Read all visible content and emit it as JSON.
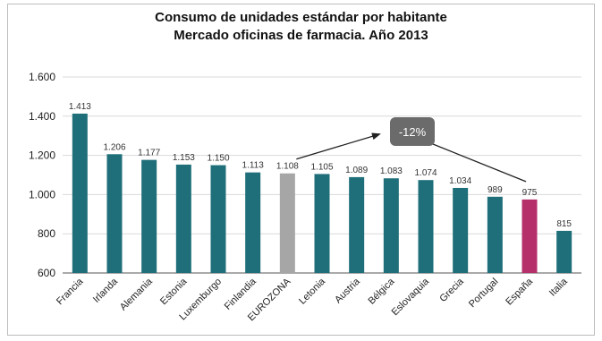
{
  "chart_data": {
    "type": "bar",
    "title": [
      "Consumo de unidades estándar por habitante",
      "Mercado oficinas de farmacia. Año 2013"
    ],
    "categories": [
      "Francia",
      "Irlanda",
      "Alemania",
      "Estonia",
      "Luxemburgo",
      "Finlandia",
      "EUROZONA",
      "Letonia",
      "Austria",
      "Bélgica",
      "Eslovaquia",
      "Grecia",
      "Portugal",
      "España",
      "Italia"
    ],
    "values": [
      1413,
      1206,
      1177,
      1153,
      1150,
      1113,
      1108,
      1105,
      1089,
      1083,
      1074,
      1034,
      989,
      975,
      815
    ],
    "value_labels": [
      "1.413",
      "1.206",
      "1.177",
      "1.153",
      "1.150",
      "1.113",
      "1.108",
      "1.105",
      "1.089",
      "1.083",
      "1.074",
      "1.034",
      "989",
      "975",
      "815"
    ],
    "ylim": [
      600,
      1600
    ],
    "yticks": [
      600,
      800,
      1000,
      1200,
      1400,
      1600
    ],
    "ytick_labels": [
      "600",
      "800",
      "1.000",
      "1.200",
      "1.400",
      "1.600"
    ],
    "grid": true,
    "colors": {
      "default": "#1f6f7a",
      "EUROZONA": "#a6a6a6",
      "España": "#b5306b"
    },
    "annotation": {
      "text": "-12%",
      "from": "España",
      "to": "EUROZONA",
      "box_color": "#6b6b6b"
    }
  }
}
